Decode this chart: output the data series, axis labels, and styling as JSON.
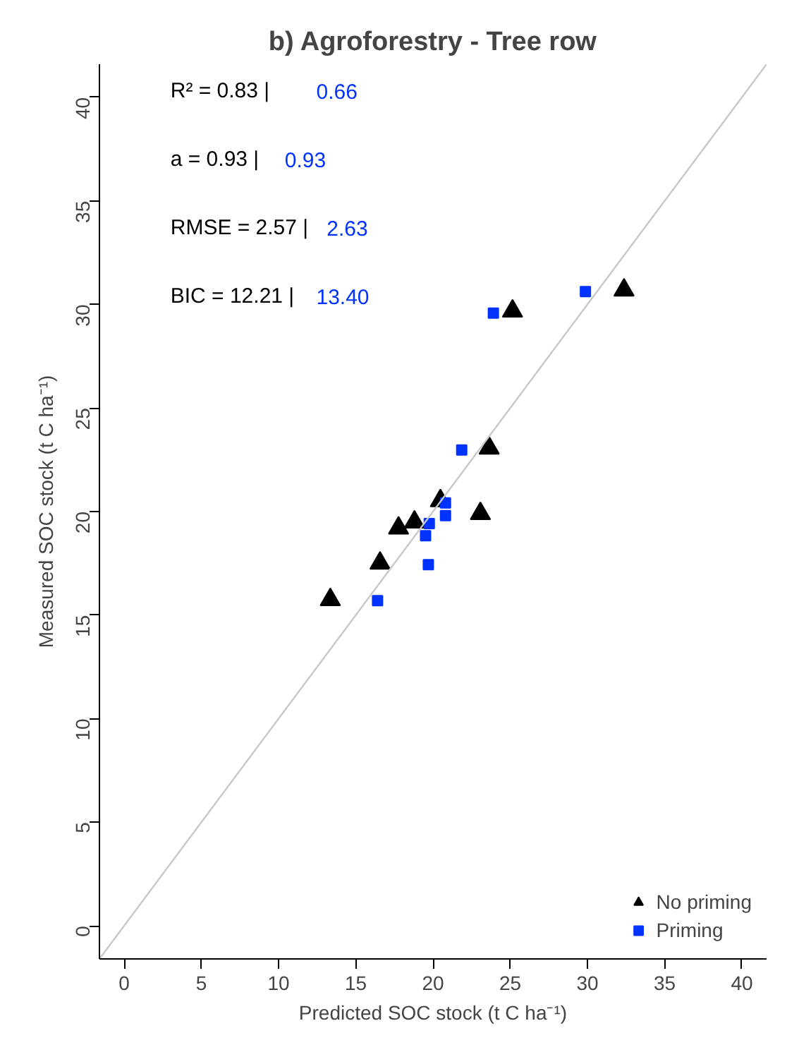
{
  "chart_data": {
    "type": "scatter",
    "title": "b) Agroforestry - Tree row",
    "xlabel": "Predicted SOC stock (t C ha⁻¹)",
    "ylabel": "Measured SOC stock (t C ha⁻¹)",
    "xlim": [
      -1.6,
      41.6
    ],
    "ylim": [
      -1.6,
      41.6
    ],
    "xticks": [
      0,
      5,
      10,
      15,
      20,
      25,
      30,
      35,
      40
    ],
    "yticks": [
      0,
      5,
      10,
      15,
      20,
      25,
      30,
      35,
      40
    ],
    "legend": "bottom right",
    "series": [
      {
        "name": "No priming",
        "color": "#000000",
        "marker": "triangle",
        "x": [
          13.35,
          16.57,
          17.77,
          18.8,
          19.87,
          20.48,
          23.07,
          23.64,
          25.15,
          32.37
        ],
        "values": [
          15.74,
          17.51,
          19.2,
          19.49,
          null,
          20.52,
          19.9,
          23.06,
          29.68,
          30.69
        ]
      },
      {
        "name": "Priming",
        "color": "#0033ff",
        "marker": "square",
        "x": [
          16.41,
          19.7,
          19.52,
          19.76,
          20.81,
          20.81,
          21.86,
          23.91,
          29.87
        ],
        "values": [
          15.7,
          17.44,
          18.83,
          19.42,
          20.42,
          19.8,
          22.97,
          29.58,
          30.62
        ]
      },
      {
        "type": "line",
        "color": "#c8c8c8",
        "x": [
          -1.6,
          41.6
        ],
        "values": [
          -1.6,
          41.6
        ]
      }
    ],
    "annotations": [
      "R² =   0.83 |",
      "0.66",
      "a = 0.93 |",
      "0.93",
      "RMSE =  2.57 |",
      "2.63",
      "BIC = 12.21 |",
      "13.40"
    ]
  }
}
